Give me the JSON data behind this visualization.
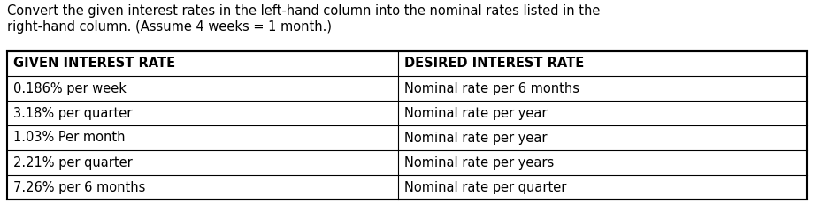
{
  "title_line1": "Convert the given interest rates in the left-hand column into the nominal rates listed in the",
  "title_line2": "right-hand column. (Assume 4 weeks = 1 month.)",
  "col1_header": "GIVEN INTEREST RATE",
  "col2_header": "DESIRED INTEREST RATE",
  "rows": [
    [
      "0.186% per week",
      "Nominal rate per 6 months"
    ],
    [
      "3.18% per quarter",
      "Nominal rate per year"
    ],
    [
      "1.03% Per month",
      "Nominal rate per year"
    ],
    [
      "2.21% per quarter",
      "Nominal rate per years"
    ],
    [
      "7.26% per 6 months",
      "Nominal rate per quarter"
    ]
  ],
  "bg_color": "#ffffff",
  "text_color": "#000000",
  "header_fontsize": 10.5,
  "body_fontsize": 10.5,
  "title_fontsize": 10.5,
  "fig_width": 9.2,
  "fig_height": 2.31,
  "dpi": 100
}
